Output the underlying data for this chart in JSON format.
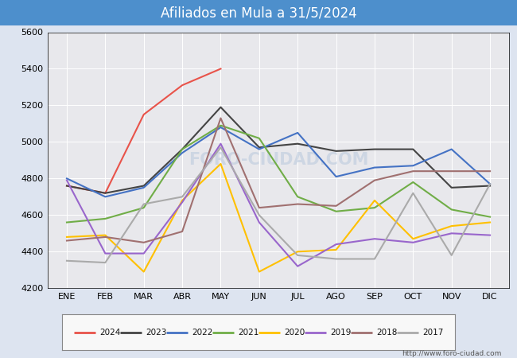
{
  "title": "Afiliados en Mula a 31/5/2024",
  "title_bg_color": "#4d8fcc",
  "title_text_color": "#ffffff",
  "plot_bg_color": "#e8e8ec",
  "fig_bg_color": "#dde4f0",
  "ylabel_min": 4200,
  "ylabel_max": 5600,
  "ytick_step": 200,
  "months": [
    "ENE",
    "FEB",
    "MAR",
    "ABR",
    "MAY",
    "JUN",
    "JUL",
    "AGO",
    "SEP",
    "OCT",
    "NOV",
    "DIC"
  ],
  "watermark": "FORO-CIUDAD.COM",
  "url_text": "http://www.foro-ciudad.com",
  "series": [
    {
      "year": "2024",
      "color": "#e8534a",
      "values": [
        4760,
        4720,
        5150,
        5310,
        5400,
        null,
        null,
        null,
        null,
        null,
        null,
        null
      ]
    },
    {
      "year": "2023",
      "color": "#444444",
      "values": [
        4760,
        4720,
        4760,
        4960,
        5190,
        4970,
        4990,
        4950,
        4960,
        4960,
        4750,
        4760
      ]
    },
    {
      "year": "2022",
      "color": "#4472c4",
      "values": [
        4800,
        4700,
        4750,
        4940,
        5080,
        4960,
        5050,
        4810,
        4860,
        4870,
        4960,
        4770
      ]
    },
    {
      "year": "2021",
      "color": "#70ad47",
      "values": [
        4560,
        4580,
        4640,
        4960,
        5090,
        5020,
        4700,
        4620,
        4640,
        4780,
        4630,
        4590
      ]
    },
    {
      "year": "2020",
      "color": "#ffc000",
      "values": [
        4480,
        4490,
        4290,
        4680,
        4880,
        4290,
        4400,
        4410,
        4680,
        4470,
        4540,
        4560
      ]
    },
    {
      "year": "2019",
      "color": "#9966cc",
      "values": [
        4790,
        4390,
        4390,
        4670,
        4990,
        4560,
        4320,
        4440,
        4470,
        4450,
        4500,
        4490
      ]
    },
    {
      "year": "2018",
      "color": "#a07070",
      "values": [
        4460,
        4480,
        4450,
        4510,
        5130,
        4640,
        4660,
        4650,
        4790,
        4840,
        4840,
        4840
      ]
    },
    {
      "year": "2017",
      "color": "#aaaaaa",
      "values": [
        4350,
        4340,
        4660,
        4700,
        4970,
        4600,
        4380,
        4360,
        4360,
        4720,
        4380,
        4770
      ]
    }
  ]
}
